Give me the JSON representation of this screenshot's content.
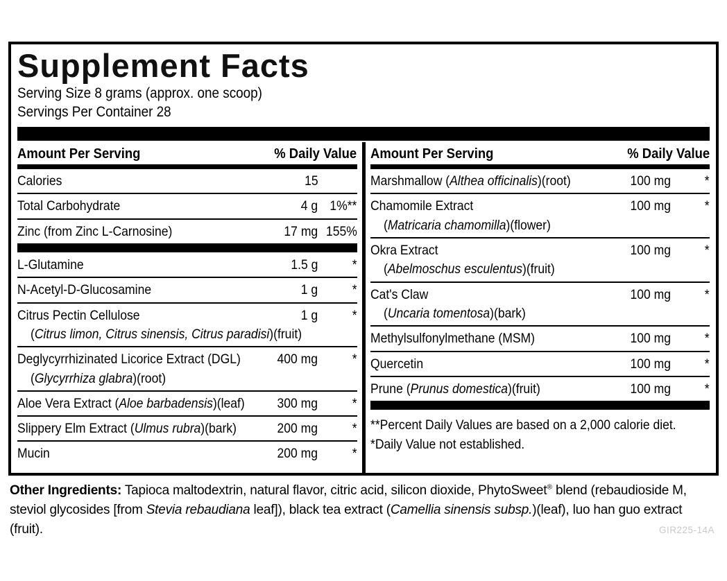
{
  "label": {
    "title": "Supplement Facts",
    "serving_size": "Serving Size 8 grams (approx. one scoop)",
    "servings_per_container": "Servings Per Container 28",
    "column_header": {
      "amount": "Amount Per Serving",
      "daily_value": "% Daily Value"
    },
    "left_column": [
      {
        "name": "Calories",
        "amount": "15",
        "dv": ""
      },
      {
        "name": "Total Carbohydrate",
        "amount": "4 g",
        "dv": "1%**"
      },
      {
        "name": "Zinc (from Zinc L-Carnosine)",
        "amount": "17 mg",
        "dv": "155%",
        "bar_after": true
      },
      {
        "name": "L-Glutamine",
        "amount": "1.5 g",
        "dv": "*"
      },
      {
        "name": "N-Acetyl-D-Glucosamine",
        "amount": "1 g",
        "dv": "*"
      },
      {
        "name": "Citrus Pectin Cellulose",
        "sub": "({Citrus limon, Citrus sinensis, Citrus paradisi})(fruit)",
        "amount": "1 g",
        "dv": "*"
      },
      {
        "name": "Deglycyrrhizinated Licorice Extract (DGL)",
        "sub": "({Glycyrrhiza glabra})(root)",
        "amount": "400 mg",
        "dv": "*"
      },
      {
        "name": "Aloe Vera Extract ({Aloe barbadensis})(leaf)",
        "amount": "300 mg",
        "dv": "*"
      },
      {
        "name": "Slippery Elm Extract ({Ulmus rubra})(bark)",
        "amount": "200 mg",
        "dv": "*"
      },
      {
        "name": "Mucin",
        "amount": "200 mg",
        "dv": "*",
        "last": true
      }
    ],
    "right_column": [
      {
        "name": "Marshmallow ({Althea officinalis})(root)",
        "amount": "100 mg",
        "dv": "*"
      },
      {
        "name": "Chamomile Extract",
        "sub": "({Matricaria chamomilla})(flower)",
        "amount": "100 mg",
        "dv": "*"
      },
      {
        "name": "Okra Extract",
        "sub": "({Abelmoschus esculentus})(fruit)",
        "amount": "100 mg",
        "dv": "*"
      },
      {
        "name": "Cat's Claw",
        "sub": "({Uncaria tomentosa})(bark)",
        "amount": "100 mg",
        "dv": "*"
      },
      {
        "name": "Methylsulfonylmethane (MSM)",
        "amount": "100 mg",
        "dv": "*"
      },
      {
        "name": "Quercetin",
        "amount": "100 mg",
        "dv": "*"
      },
      {
        "name": "Prune ({Prunus domestica})(fruit)",
        "amount": "100 mg",
        "dv": "*",
        "bar_after": true
      }
    ],
    "footnotes": [
      "**Percent Daily Values are based on a 2,000 calorie diet.",
      "*Daily Value not established."
    ],
    "other_ingredients_label": "Other Ingredients:",
    "other_ingredients_text": "Tapioca maltodextrin, natural flavor, citric acid, silicon dioxide, PhytoSweet® blend (rebaudioside M, steviol glycosides [from {Stevia rebaudiana} leaf]), black tea extract ({Camellia sinensis subsp.})(leaf), luo han guo extract (fruit).",
    "product_code": "GIR225-14A"
  }
}
